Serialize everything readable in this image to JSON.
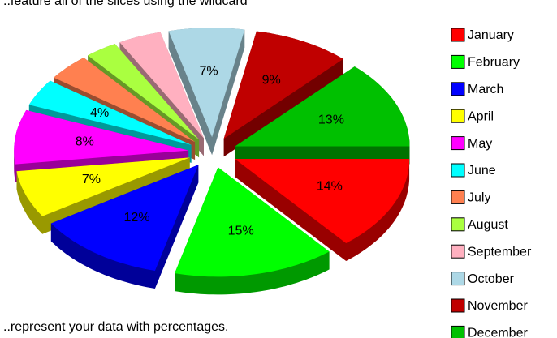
{
  "chart_data": {
    "type": "pie",
    "title": "..feature all of the slices using the wildcard",
    "subtitle": "..represent your data with percentages.",
    "categories": [
      "January",
      "February",
      "March",
      "April",
      "May",
      "June",
      "July",
      "August",
      "September",
      "October",
      "November",
      "December"
    ],
    "values": [
      14,
      15,
      12,
      7,
      8,
      4,
      4,
      3,
      4,
      7,
      9,
      13
    ],
    "value_labels": [
      "14%",
      "15%",
      "12%",
      "7%",
      "8%",
      "4%",
      null,
      null,
      null,
      "7%",
      "9%",
      "13%"
    ],
    "colors": [
      "#ff0000",
      "#00ff00",
      "#0000ff",
      "#ffff00",
      "#ff00ff",
      "#00ffff",
      "#ff8050",
      "#aaff40",
      "#ffb0c0",
      "#add8e6",
      "#c00000",
      "#00c000"
    ],
    "legend": "right"
  }
}
